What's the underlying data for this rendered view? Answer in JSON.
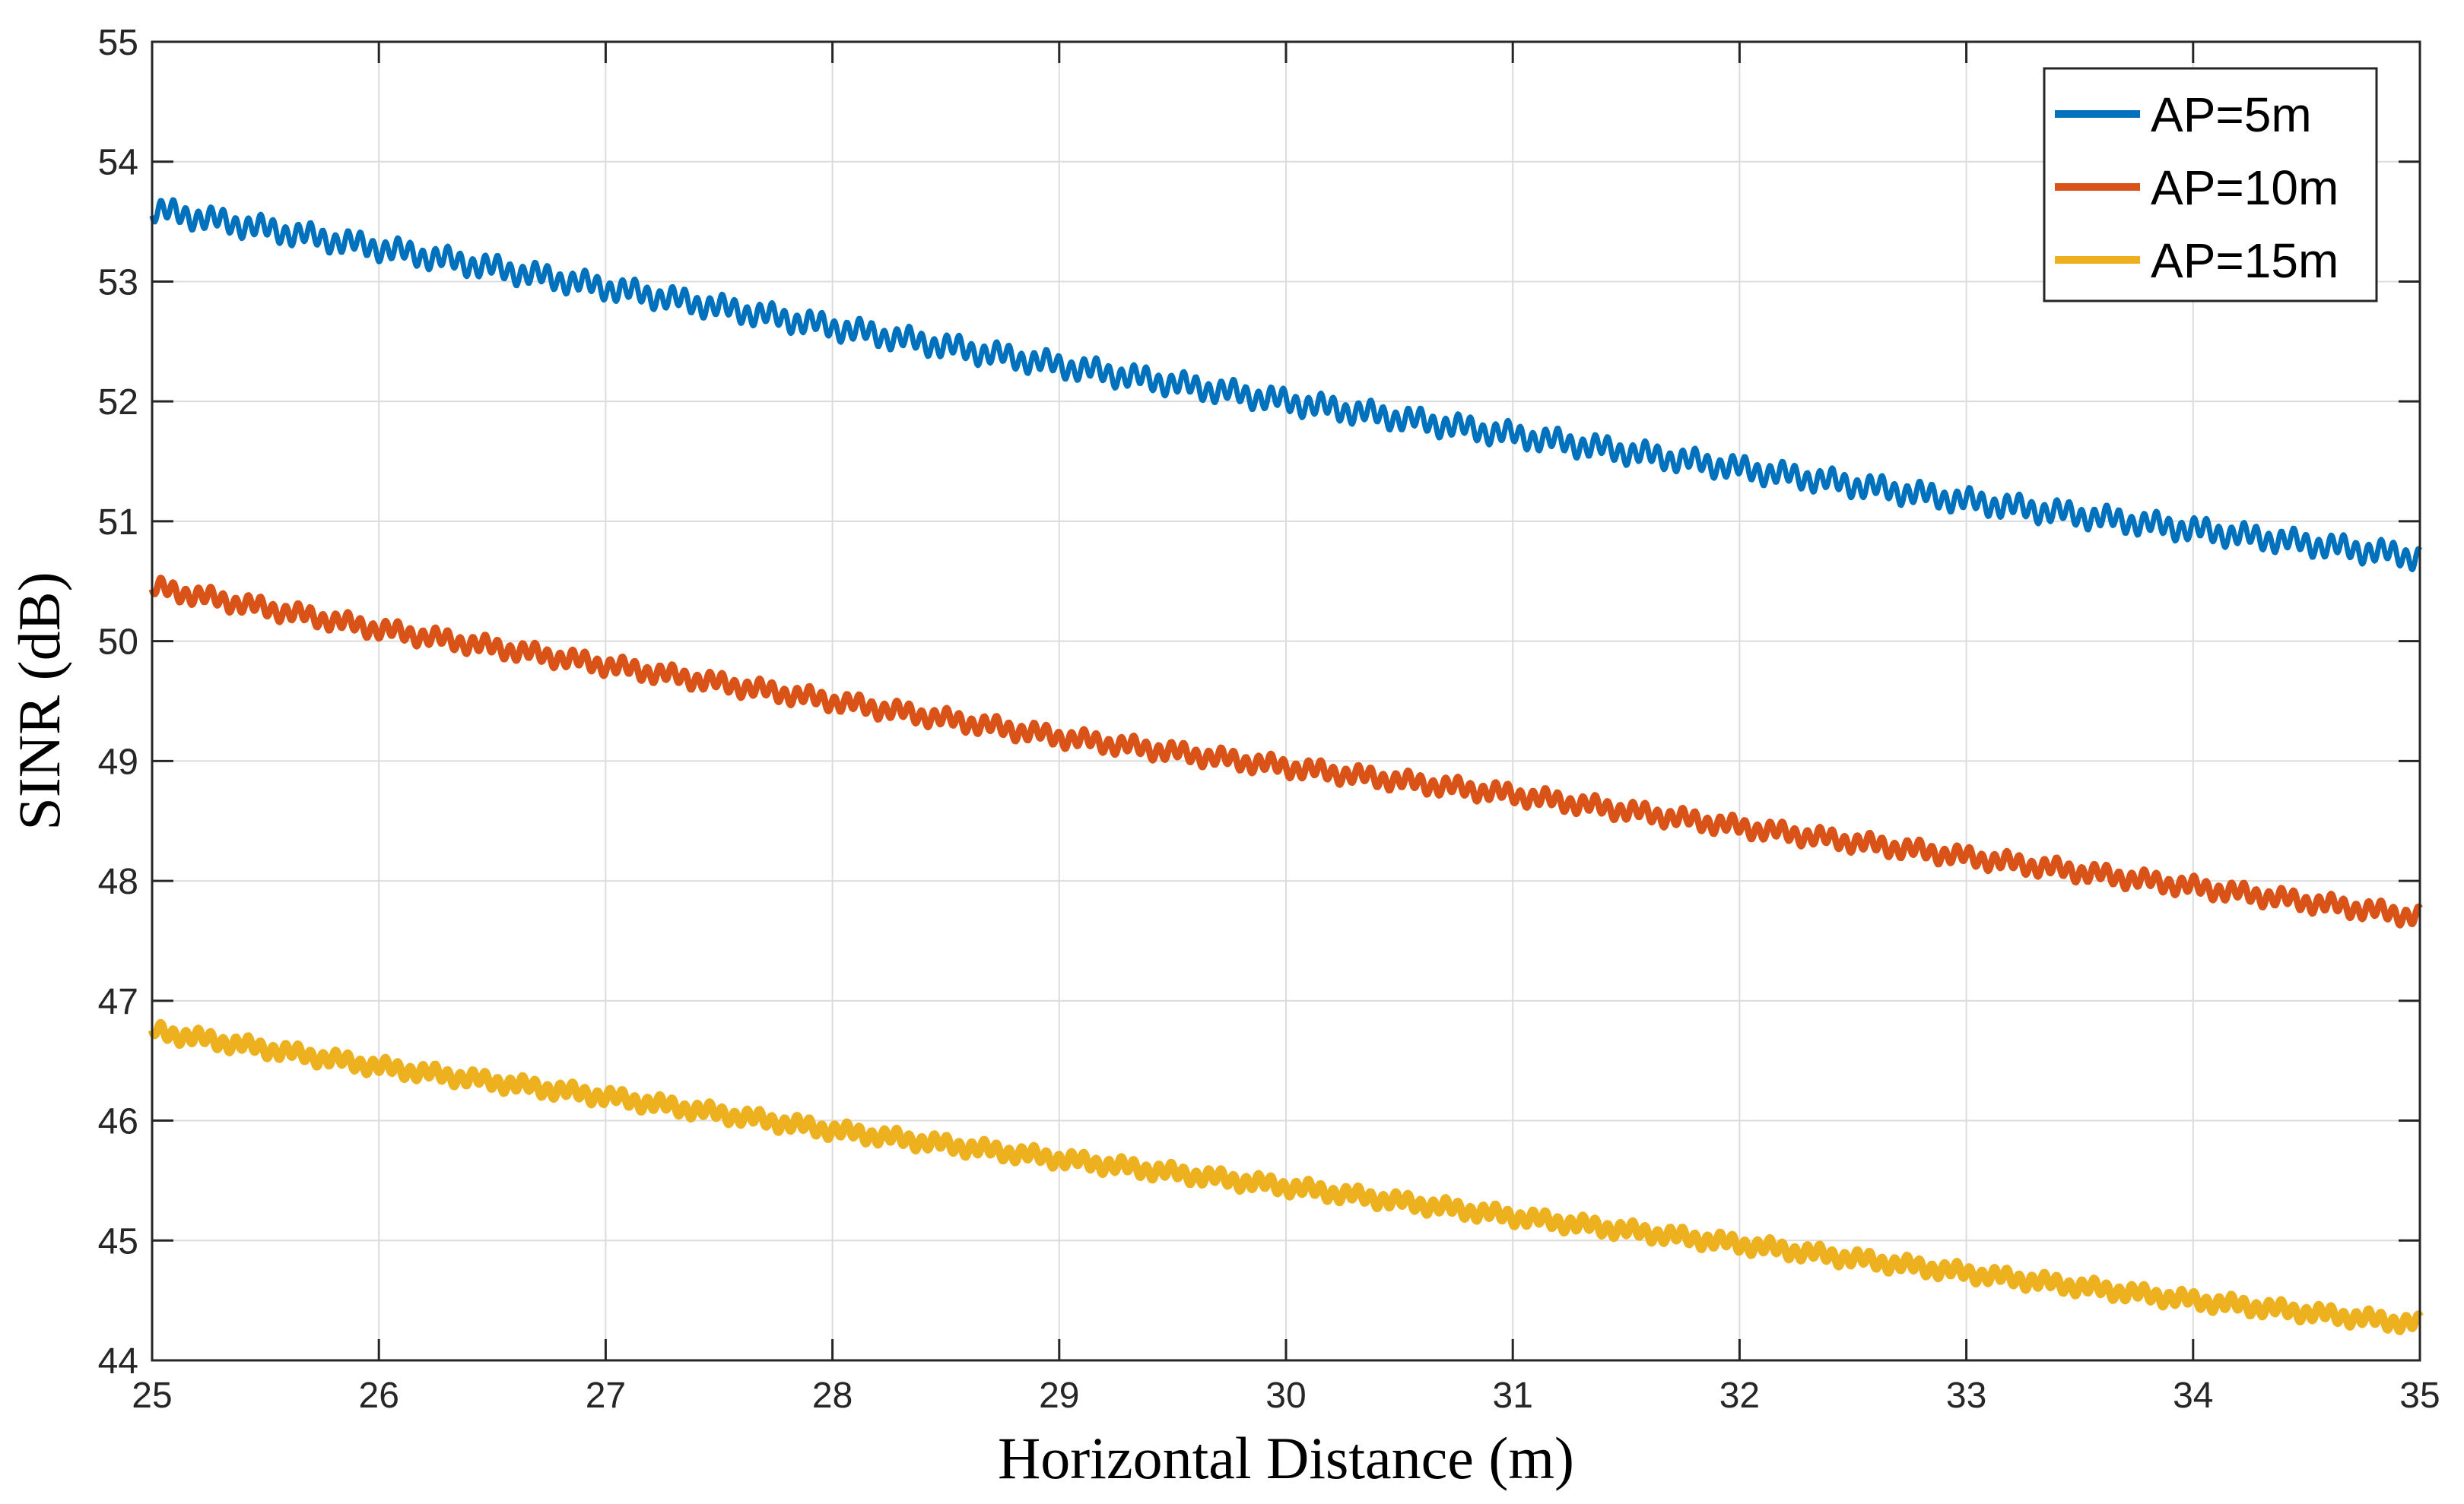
{
  "chart_data": {
    "type": "line",
    "title": "",
    "xlabel": "Horizontal Distance (m)",
    "ylabel": "SINR (dB)",
    "xlim": [
      25,
      35
    ],
    "ylim": [
      44,
      55
    ],
    "xticks": [
      25,
      26,
      27,
      28,
      29,
      30,
      31,
      32,
      33,
      34,
      35
    ],
    "yticks": [
      44,
      45,
      46,
      47,
      48,
      49,
      50,
      51,
      52,
      53,
      54,
      55
    ],
    "grid": true,
    "legend_position": "top-right",
    "series": [
      {
        "name": "AP=5m",
        "color": "#0072BD",
        "x": [
          25,
          26,
          27,
          28,
          29,
          30,
          31,
          32,
          33,
          34,
          35
        ],
        "values": [
          53.6,
          53.28,
          52.95,
          52.62,
          52.3,
          52.0,
          51.72,
          51.44,
          51.17,
          50.93,
          50.7
        ],
        "ripple_amplitude": 0.1
      },
      {
        "name": "AP=10m",
        "color": "#D95319",
        "x": [
          25,
          26,
          27,
          28,
          29,
          30,
          31,
          32,
          33,
          34,
          35
        ],
        "values": [
          50.45,
          50.1,
          49.8,
          49.5,
          49.2,
          48.95,
          48.72,
          48.45,
          48.2,
          47.95,
          47.7
        ],
        "ripple_amplitude": 0.08
      },
      {
        "name": "AP=15m",
        "color": "#EDB120",
        "x": [
          25,
          26,
          27,
          28,
          29,
          30,
          31,
          32,
          33,
          34,
          35
        ],
        "values": [
          46.75,
          46.45,
          46.2,
          45.92,
          45.68,
          45.45,
          45.2,
          44.97,
          44.73,
          44.5,
          44.3
        ],
        "ripple_amplitude": 0.07
      }
    ]
  }
}
